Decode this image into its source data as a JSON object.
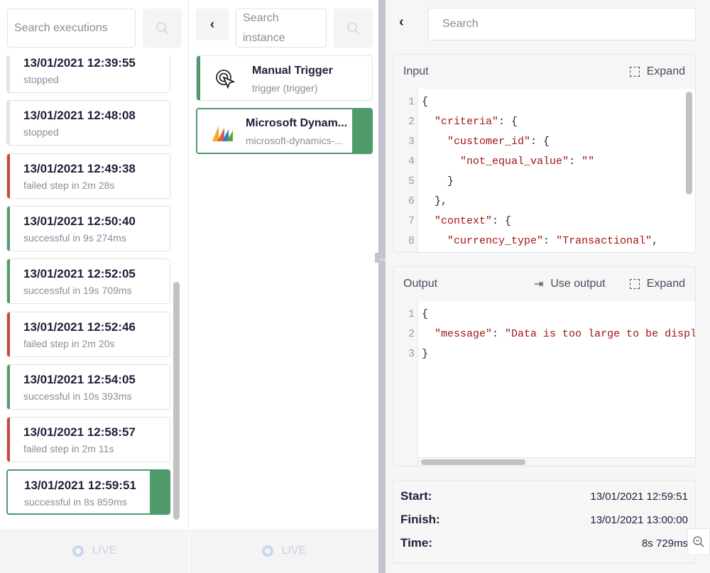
{
  "executions": {
    "search_placeholder": "Search executions",
    "items": [
      {
        "time": "13/01/2021 12:39:55",
        "status": "stopped",
        "color": "#e4e4e8"
      },
      {
        "time": "13/01/2021 12:48:08",
        "status": "stopped",
        "color": "#e4e4e8"
      },
      {
        "time": "13/01/2021 12:49:38",
        "status": "failed step in 2m 28s",
        "color": "#c8453f"
      },
      {
        "time": "13/01/2021 12:50:40",
        "status": "successful in 9s 274ms",
        "color": "#4e9a6a"
      },
      {
        "time": "13/01/2021 12:52:05",
        "status": "successful in 19s 709ms",
        "color": "#4e9a6a"
      },
      {
        "time": "13/01/2021 12:52:46",
        "status": "failed step in 2m 20s",
        "color": "#c8453f"
      },
      {
        "time": "13/01/2021 12:54:05",
        "status": "successful in 10s 393ms",
        "color": "#4e9a6a"
      },
      {
        "time": "13/01/2021 12:58:57",
        "status": "failed step in 2m 11s",
        "color": "#c8453f"
      },
      {
        "time": "13/01/2021 12:59:51",
        "status": "successful in 8s 859ms",
        "color": "#4e9a6a",
        "selected": true
      }
    ],
    "live_label": "LIVE"
  },
  "instances": {
    "search_placeholder": "Search instance",
    "items": [
      {
        "name": "Manual Trigger",
        "sub": "trigger (trigger)",
        "icon": "cursor-click-icon"
      },
      {
        "name": "Microsoft Dynam...",
        "sub": "microsoft-dynamics-...",
        "icon": "microsoft-dynamics-logo",
        "selected": true
      }
    ],
    "live_label": "LIVE"
  },
  "detail": {
    "search_placeholder": "Search",
    "input": {
      "title": "Input",
      "expand": "Expand",
      "lines": [
        [
          [
            "",
            "{"
          ]
        ],
        [
          [
            "",
            "  "
          ],
          [
            "k",
            "\"criteria\""
          ],
          [
            "",
            ": {"
          ]
        ],
        [
          [
            "",
            "    "
          ],
          [
            "k",
            "\"customer_id\""
          ],
          [
            "",
            ": {"
          ]
        ],
        [
          [
            "",
            "      "
          ],
          [
            "k",
            "\"not_equal_value\""
          ],
          [
            "",
            ": "
          ],
          [
            "k",
            "\"\""
          ]
        ],
        [
          [
            "",
            "    }"
          ]
        ],
        [
          [
            "",
            "  },"
          ]
        ],
        [
          [
            "",
            "  "
          ],
          [
            "k",
            "\"context\""
          ],
          [
            "",
            ": {"
          ]
        ],
        [
          [
            "",
            "    "
          ],
          [
            "k",
            "\"currency_type\""
          ],
          [
            "",
            ": "
          ],
          [
            "k",
            "\"Transactional\""
          ],
          [
            "",
            ","
          ]
        ]
      ]
    },
    "output": {
      "title": "Output",
      "use_output": "Use output",
      "expand": "Expand",
      "lines": [
        [
          [
            "",
            "{"
          ]
        ],
        [
          [
            "",
            "  "
          ],
          [
            "k",
            "\"message\""
          ],
          [
            "",
            ": "
          ],
          [
            "k",
            "\"Data is too large to be displayed\""
          ]
        ],
        [
          [
            "",
            "}"
          ]
        ]
      ]
    },
    "stats": [
      {
        "label": "Start:",
        "value": "13/01/2021 12:59:51"
      },
      {
        "label": "Finish:",
        "value": "13/01/2021 13:00:00"
      },
      {
        "label": "Time:",
        "value": "8s 729ms"
      }
    ]
  },
  "colors": {
    "success": "#4e9a6a",
    "failed": "#c8453f",
    "stopped": "#e4e4e8",
    "divider": "#c3c2cf"
  }
}
